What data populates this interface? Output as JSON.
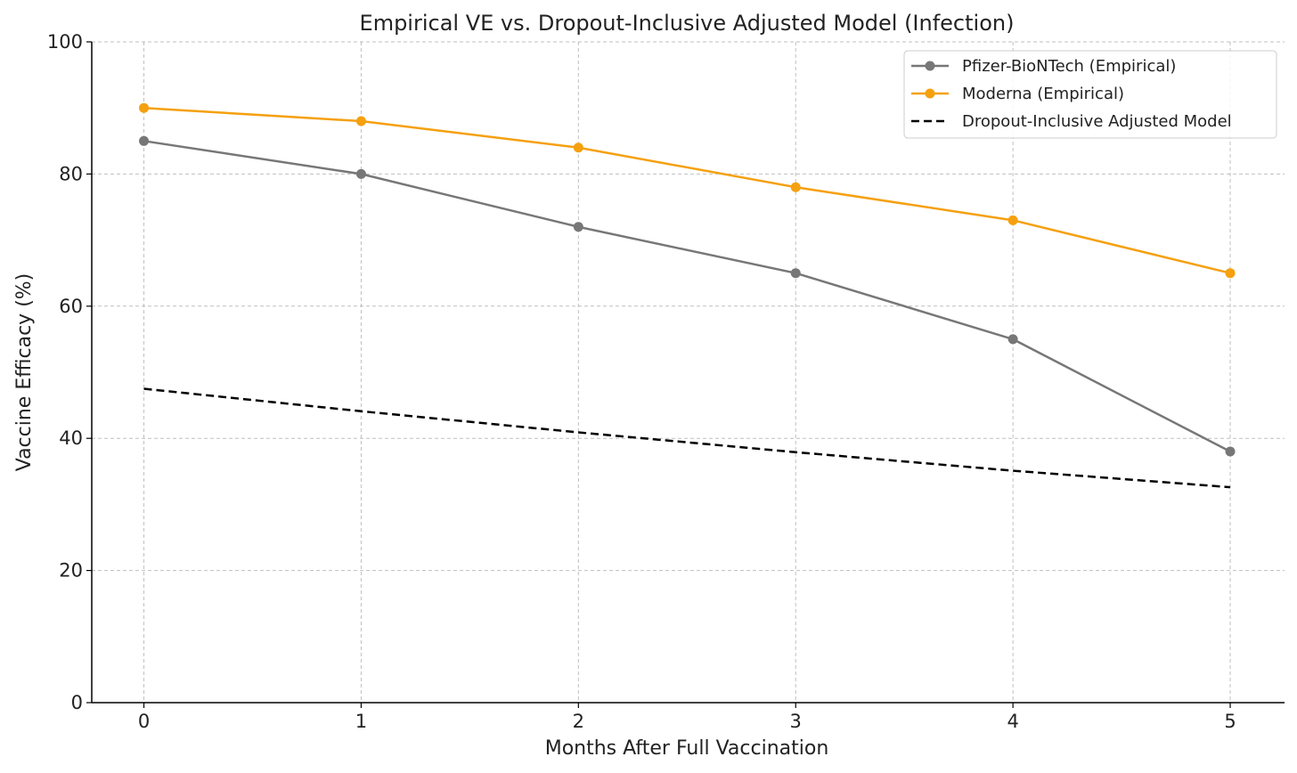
{
  "chart_data": {
    "type": "line",
    "title": "Empirical VE vs. Dropout-Inclusive Adjusted Model (Infection)",
    "xlabel": "Months After Full Vaccination",
    "ylabel": "Vaccine Efficacy (%)",
    "x": [
      0,
      1,
      2,
      3,
      4,
      5
    ],
    "xlim": [
      -0.24,
      5.25
    ],
    "ylim": [
      0,
      100
    ],
    "xticks": [
      "0",
      "1",
      "2",
      "3",
      "4",
      "5"
    ],
    "yticks": [
      "0",
      "20",
      "40",
      "60",
      "80",
      "100"
    ],
    "grid": true,
    "legend_position": "top-right",
    "series": [
      {
        "name": "Pfizer-BioNTech (Empirical)",
        "values": [
          85,
          80,
          72,
          65,
          55,
          38
        ],
        "color": "#777777",
        "style": "solid",
        "marker": "circle"
      },
      {
        "name": "Moderna (Empirical)",
        "values": [
          90,
          88,
          84,
          78,
          73,
          65
        ],
        "color": "#f5a00f",
        "style": "solid",
        "marker": "circle"
      },
      {
        "name": "Dropout-Inclusive Adjusted Model",
        "values": [
          47.5,
          44.1,
          40.9,
          37.9,
          35.1,
          32.6
        ],
        "color": "#000000",
        "style": "dashed",
        "marker": "none"
      }
    ]
  }
}
